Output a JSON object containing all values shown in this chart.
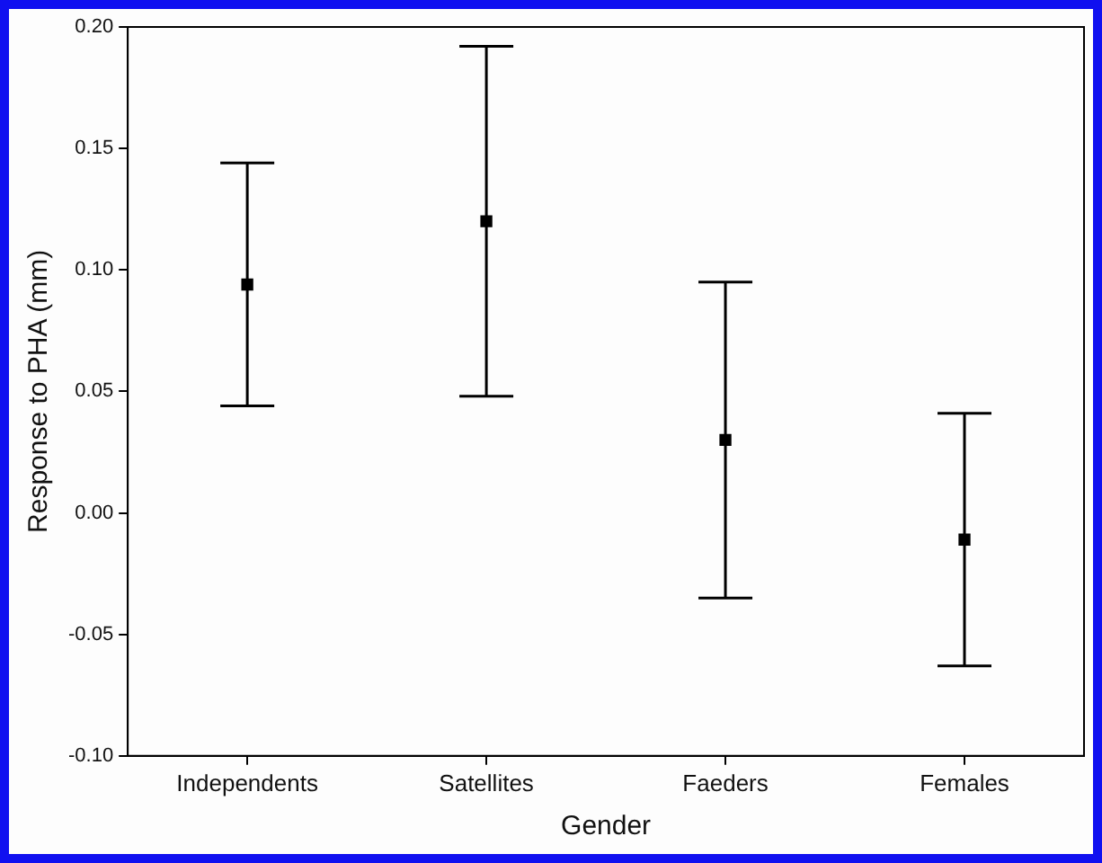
{
  "chart_data": {
    "type": "scatter",
    "xlabel": "Gender",
    "ylabel": "Response to PHA (mm)",
    "categories": [
      "Independents",
      "Satellites",
      "Faeders",
      "Females"
    ],
    "values": [
      0.094,
      0.12,
      0.03,
      -0.011
    ],
    "errors": [
      0.05,
      0.072,
      0.065,
      0.052
    ],
    "color": "#000000",
    "marker": "square",
    "ylim": [
      -0.1,
      0.2
    ],
    "yticks": [
      {
        "value": -0.1,
        "label": "-0.10"
      },
      {
        "value": -0.05,
        "label": "-0.05"
      },
      {
        "value": 0,
        "label": "0.00"
      },
      {
        "value": 0.05,
        "label": "0.05"
      },
      {
        "value": 0.1,
        "label": "0.10"
      },
      {
        "value": 0.15,
        "label": "0.15"
      },
      {
        "value": 0.2,
        "label": "0.20"
      }
    ],
    "grid": false,
    "legend": false
  }
}
